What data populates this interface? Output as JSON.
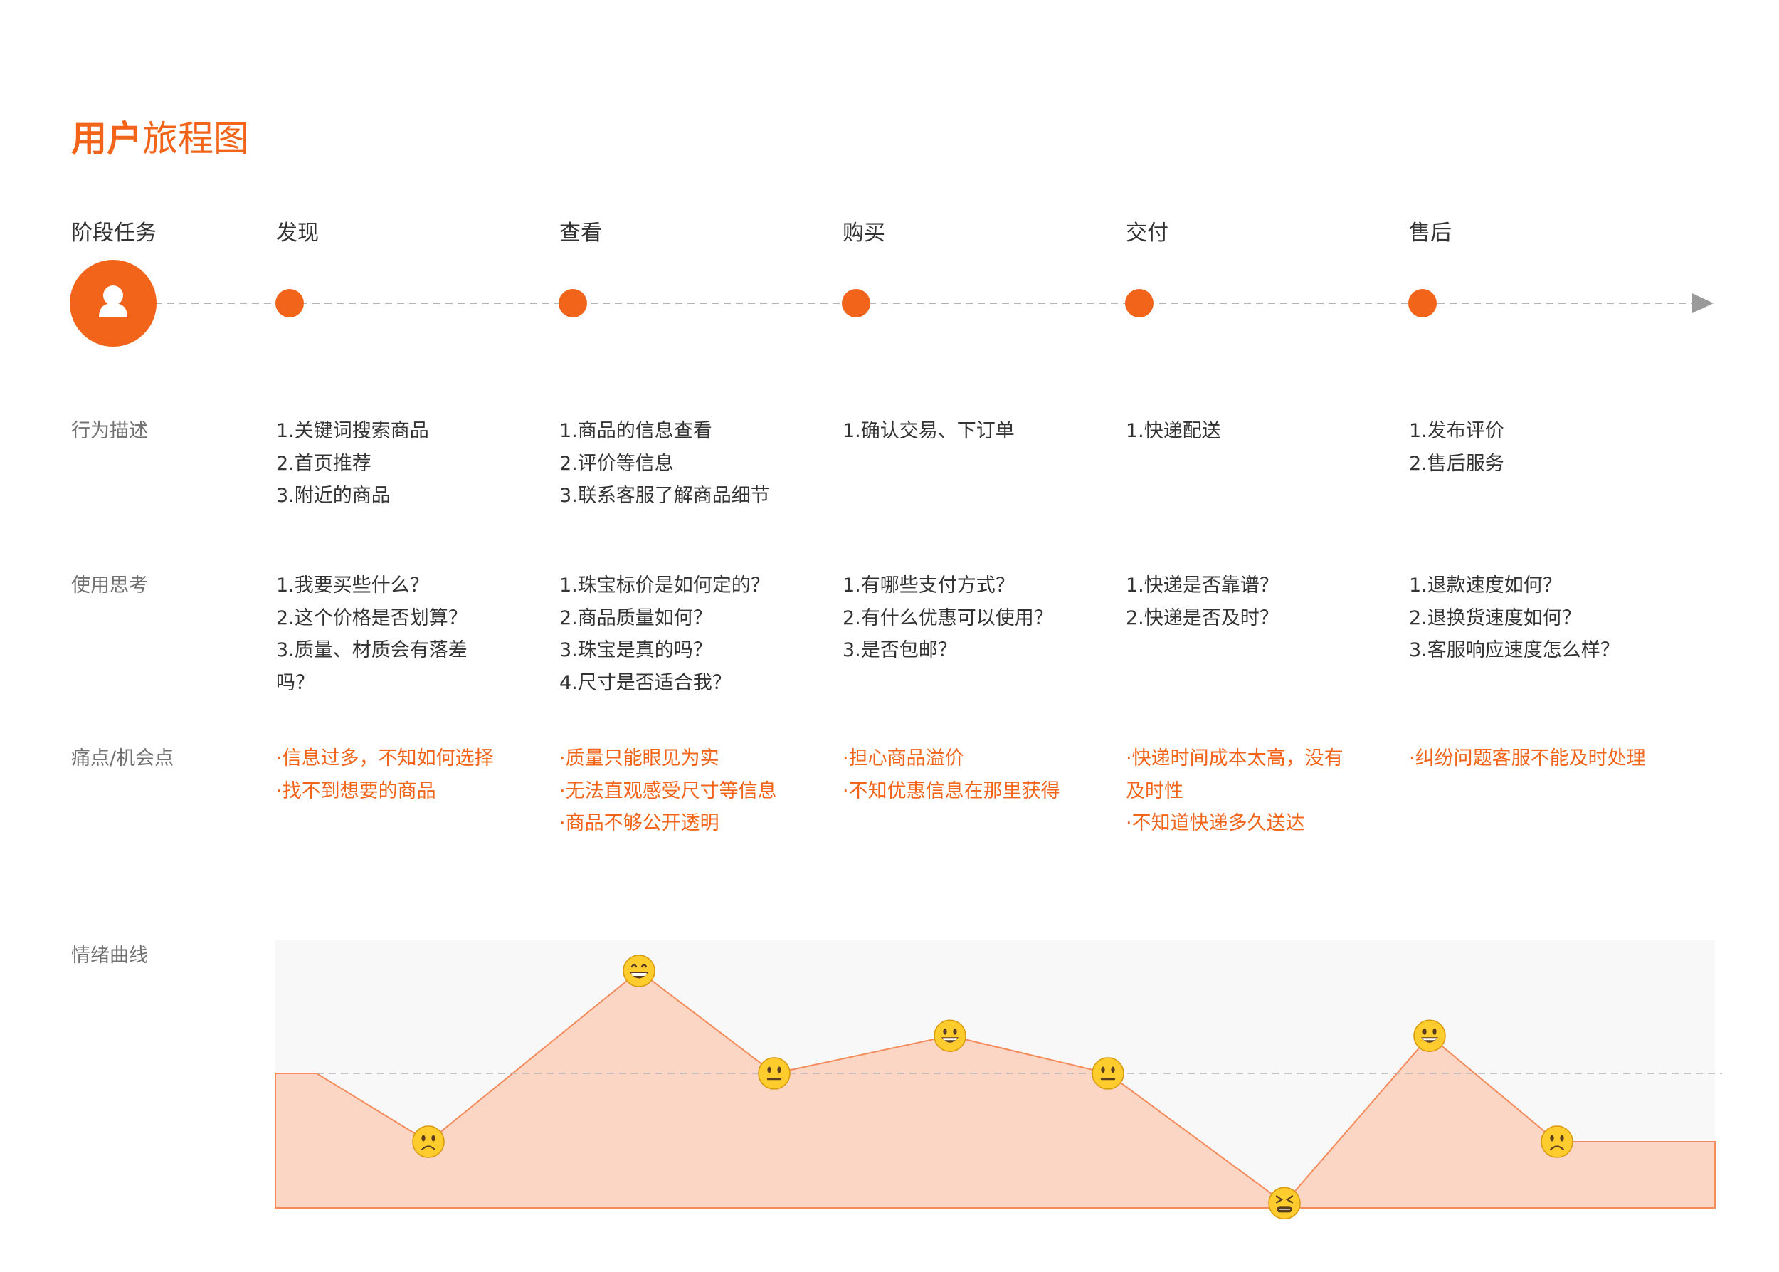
{
  "title": {
    "bold": "用户",
    "regular": "旅程图"
  },
  "timeline": {
    "header_label": "阶段任务",
    "stages": [
      "发现",
      "查看",
      "购买",
      "交付",
      "售后"
    ]
  },
  "rows": {
    "behavior": {
      "label": "行为描述",
      "cells": [
        [
          "1.关键词搜索商品",
          "2.首页推荐",
          "3.附近的商品"
        ],
        [
          "1.商品的信息查看",
          "2.评价等信息",
          "3.联系客服了解商品细节"
        ],
        [
          "1.确认交易、下订单"
        ],
        [
          "1.快递配送"
        ],
        [
          "1.发布评价",
          "2.售后服务"
        ]
      ]
    },
    "thinking": {
      "label": "使用思考",
      "cells": [
        [
          "1.我要买些什么？",
          "2.这个价格是否划算？",
          "3.质量、材质会有落差吗？"
        ],
        [
          "1.珠宝标价是如何定的？",
          "2.商品质量如何？",
          "3.珠宝是真的吗？",
          "4.尺寸是否适合我？"
        ],
        [
          "1.有哪些支付方式？",
          "2.有什么优惠可以使用？",
          "3.是否包邮？"
        ],
        [
          "1.快递是否靠谱？",
          "2.快递是否及时？"
        ],
        [
          "1.退款速度如何？",
          "2.退换货速度如何？",
          "3.客服响应速度怎么样？"
        ]
      ]
    },
    "pain": {
      "label": "痛点/机会点",
      "cells": [
        [
          "·信息过多，不知如何选择",
          "·找不到想要的商品"
        ],
        [
          "·质量只能眼见为实",
          "·无法直观感受尺寸等信息",
          "·商品不够公开透明"
        ],
        [
          "·担心商品溢价",
          "·不知优惠信息在那里获得"
        ],
        [
          "·快递时间成本太高，没有及时性",
          "·不知道快递多久送达"
        ],
        [
          "·纠纷问题客服不能及时处理"
        ]
      ]
    }
  },
  "emotion": {
    "label": "情绪曲线",
    "scale": "level 0 = neutral baseline, positive = happier, negative = sadder",
    "points": [
      {
        "level": -1,
        "mood": "sad"
      },
      {
        "level": 1.5,
        "mood": "grin"
      },
      {
        "level": 0,
        "mood": "neutral"
      },
      {
        "level": 0.55,
        "mood": "smile"
      },
      {
        "level": 0,
        "mood": "neutral"
      },
      {
        "level": -1.9,
        "mood": "distressed"
      },
      {
        "level": 0.55,
        "mood": "smile"
      },
      {
        "level": -1,
        "mood": "sad"
      }
    ]
  },
  "colors": {
    "accent": "#F26419",
    "curve_fill": "#FBD6C4",
    "curve_stroke": "#F58A5A",
    "panel_bg": "#F8F8F8",
    "dashed_line": "#B4B4B4",
    "arrow": "#9A9A9A"
  },
  "icons": {
    "user": "user-avatar-icon",
    "arrow": "arrow-right-icon"
  }
}
